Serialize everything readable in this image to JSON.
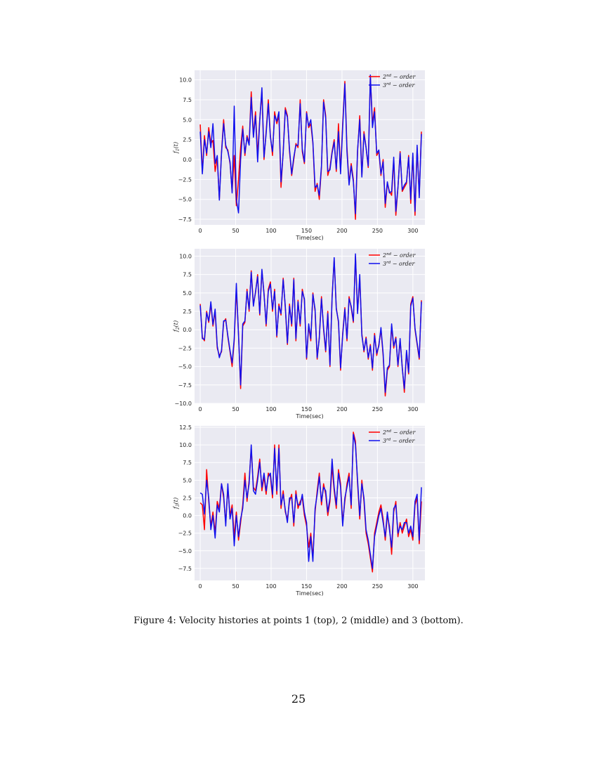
{
  "chart_data": [
    {
      "type": "line",
      "xlabel": "Time(sec)",
      "ylabel": "f_1(t)",
      "ylabel_base": "f",
      "ylabel_sub": "1",
      "ylabel_arg": "(t)",
      "xlim": [
        -8,
        317
      ],
      "ylim": [
        -8.2,
        11.2
      ],
      "xticks": [
        0,
        50,
        100,
        150,
        200,
        250,
        300
      ],
      "xtick_labels": [
        "0",
        "50",
        "100",
        "150",
        "200",
        "250",
        "300"
      ],
      "yticks": [
        -7.5,
        -5.0,
        -2.5,
        0.0,
        2.5,
        5.0,
        7.5,
        10.0
      ],
      "ytick_labels": [
        "−7.5",
        "−5.0",
        "−2.5",
        "0.0",
        "2.5",
        "5.0",
        "7.5",
        "10.0"
      ],
      "grid": true,
      "legend_position": "top-right",
      "x": [
        0,
        3,
        6,
        9,
        12,
        15,
        18,
        21,
        24,
        27,
        30,
        33,
        36,
        39,
        42,
        45,
        48,
        51,
        54,
        57,
        60,
        63,
        66,
        69,
        72,
        75,
        78,
        81,
        84,
        87,
        90,
        93,
        96,
        99,
        102,
        105,
        108,
        111,
        114,
        117,
        120,
        123,
        126,
        129,
        132,
        135,
        138,
        141,
        144,
        147,
        150,
        153,
        156,
        159,
        162,
        165,
        168,
        171,
        174,
        177,
        180,
        183,
        186,
        189,
        192,
        195,
        198,
        201,
        204,
        207,
        210,
        213,
        216,
        219,
        222,
        225,
        228,
        231,
        234,
        237,
        240,
        243,
        246,
        249,
        252,
        255,
        258,
        261,
        264,
        267,
        270,
        273,
        276,
        279,
        282,
        285,
        288,
        291,
        294,
        297,
        300,
        303,
        306,
        309,
        312
      ],
      "series": [
        {
          "name": "2nd − order",
          "name_base": "2",
          "name_sup": "nd",
          "name_rest": " − order",
          "color": "#ff0000",
          "values": [
            4.4,
            -1.5,
            3.0,
            0.5,
            4.0,
            2.0,
            2.4,
            -1.5,
            0.2,
            -5.0,
            1.0,
            5.0,
            1.5,
            1.2,
            -0.5,
            -4.0,
            0.5,
            -5.8,
            -2.5,
            1.5,
            4.2,
            0.5,
            3.0,
            2.0,
            8.5,
            3.0,
            6.0,
            0.5,
            5.0,
            8.5,
            0.0,
            3.5,
            7.5,
            3.0,
            0.5,
            6.0,
            4.5,
            5.5,
            -3.5,
            1.0,
            6.5,
            5.5,
            1.0,
            -2.0,
            0.0,
            2.0,
            1.5,
            7.5,
            1.0,
            -0.5,
            6.0,
            4.0,
            4.5,
            2.0,
            -4.0,
            -3.0,
            -5.0,
            -1.0,
            7.5,
            5.5,
            -2.0,
            -1.0,
            1.0,
            2.5,
            -1.5,
            4.5,
            -1.5,
            4.5,
            9.8,
            1.5,
            -3.0,
            -0.5,
            -2.5,
            -7.5,
            1.0,
            5.5,
            -2.0,
            3.5,
            1.5,
            -1.0,
            10.5,
            4.5,
            6.5,
            0.5,
            1.0,
            -2.0,
            0.0,
            -6.0,
            -3.0,
            -4.0,
            -4.5,
            0.0,
            -7.0,
            -3.5,
            1.0,
            -4.0,
            -3.5,
            -3.0,
            0.5,
            -5.5,
            0.5,
            -7.0,
            1.5,
            -4.5,
            3.5
          ]
        },
        {
          "name": "3rd − order",
          "name_base": "3",
          "name_sup": "rd",
          "name_rest": " − order",
          "color": "#1010ee",
          "values": [
            3.5,
            -1.8,
            2.5,
            0.8,
            3.5,
            1.5,
            4.5,
            -0.5,
            0.5,
            -5.1,
            0.8,
            4.5,
            1.8,
            1.0,
            -0.3,
            -4.2,
            6.7,
            -5.0,
            -6.7,
            0.0,
            3.8,
            0.8,
            2.8,
            1.8,
            7.8,
            2.8,
            5.5,
            -0.3,
            4.8,
            9.0,
            0.3,
            3.2,
            7.0,
            2.8,
            1.0,
            5.5,
            4.8,
            6.0,
            -2.8,
            0.8,
            6.2,
            5.3,
            1.3,
            -1.8,
            0.3,
            1.8,
            1.8,
            7.0,
            1.3,
            -0.3,
            5.8,
            4.2,
            5.0,
            2.2,
            -3.5,
            -3.2,
            -4.5,
            -0.8,
            7.2,
            5.2,
            -1.5,
            -1.3,
            0.8,
            2.2,
            -1.2,
            3.5,
            -1.8,
            4.0,
            9.5,
            1.0,
            -3.2,
            -0.8,
            -2.8,
            -6.8,
            1.2,
            5.0,
            -2.2,
            3.2,
            1.5,
            -0.8,
            10.6,
            4.0,
            6.0,
            0.8,
            1.2,
            -1.8,
            -0.3,
            -5.5,
            -2.8,
            -4.2,
            -4.0,
            0.3,
            -6.5,
            -3.5,
            0.8,
            -3.8,
            -3.2,
            -2.8,
            0.3,
            -5.0,
            0.8,
            -6.5,
            1.8,
            -4.8,
            3.2
          ]
        }
      ]
    },
    {
      "type": "line",
      "xlabel": "Time(sec)",
      "ylabel": "f_2(t)",
      "ylabel_base": "f",
      "ylabel_sub": "2",
      "ylabel_arg": "(t)",
      "xlim": [
        -8,
        317
      ],
      "ylim": [
        -10.0,
        11.0
      ],
      "xticks": [
        0,
        50,
        100,
        150,
        200,
        250,
        300
      ],
      "xtick_labels": [
        "0",
        "50",
        "100",
        "150",
        "200",
        "250",
        "300"
      ],
      "yticks": [
        -10.0,
        -7.5,
        -5.0,
        -2.5,
        0.0,
        2.5,
        5.0,
        7.5,
        10.0
      ],
      "ytick_labels": [
        "−10.0",
        "−7.5",
        "−5.0",
        "−2.5",
        "0.0",
        "2.5",
        "5.0",
        "7.5",
        "10.0"
      ],
      "grid": true,
      "legend_position": "top-right",
      "x": [
        0,
        3,
        6,
        9,
        12,
        15,
        18,
        21,
        24,
        27,
        30,
        33,
        36,
        39,
        42,
        45,
        48,
        51,
        54,
        57,
        60,
        63,
        66,
        69,
        72,
        75,
        78,
        81,
        84,
        87,
        90,
        93,
        96,
        99,
        102,
        105,
        108,
        111,
        114,
        117,
        120,
        123,
        126,
        129,
        132,
        135,
        138,
        141,
        144,
        147,
        150,
        153,
        156,
        159,
        162,
        165,
        168,
        171,
        174,
        177,
        180,
        183,
        186,
        189,
        192,
        195,
        198,
        201,
        204,
        207,
        210,
        213,
        216,
        219,
        222,
        225,
        228,
        231,
        234,
        237,
        240,
        243,
        246,
        249,
        252,
        255,
        258,
        261,
        264,
        267,
        270,
        273,
        276,
        279,
        282,
        285,
        288,
        291,
        294,
        297,
        300,
        303,
        306,
        309,
        312
      ],
      "series": [
        {
          "name": "2nd − order",
          "name_base": "2",
          "name_sup": "nd",
          "name_rest": " − order",
          "color": "#ff0000",
          "values": [
            3.5,
            -1.0,
            -1.5,
            2.5,
            1.0,
            3.5,
            0.5,
            2.5,
            -2.5,
            -3.5,
            -3.0,
            1.0,
            1.5,
            -1.0,
            -3.0,
            -5.0,
            -1.5,
            5.5,
            -0.5,
            -8.0,
            0.5,
            1.0,
            5.5,
            2.5,
            8.0,
            3.5,
            5.0,
            7.5,
            2.0,
            8.0,
            5.0,
            0.5,
            5.5,
            6.5,
            2.5,
            5.5,
            -1.0,
            3.5,
            2.0,
            7.0,
            3.0,
            -2.0,
            3.5,
            0.5,
            7.0,
            -1.5,
            4.0,
            0.5,
            5.5,
            4.0,
            -4.0,
            0.5,
            -1.5,
            5.0,
            2.5,
            -4.0,
            -1.0,
            4.5,
            0.0,
            -3.0,
            2.5,
            -5.0,
            4.5,
            9.5,
            3.0,
            1.0,
            -5.5,
            -0.5,
            3.0,
            -1.5,
            4.5,
            3.0,
            1.0,
            10.0,
            2.5,
            7.0,
            -0.5,
            -3.0,
            -1.0,
            -4.0,
            -2.0,
            -5.5,
            -0.5,
            -3.5,
            -2.0,
            0.0,
            -3.5,
            -9.0,
            -5.5,
            -5.0,
            0.5,
            -2.5,
            -1.0,
            -5.0,
            -1.5,
            -5.0,
            -8.5,
            -3.0,
            -6.0,
            3.5,
            4.5,
            0.0,
            -2.0,
            -4.0,
            4.0
          ]
        },
        {
          "name": "3rd − order",
          "name_base": "3",
          "name_sup": "rd",
          "name_rest": " − order",
          "color": "#1010ee",
          "values": [
            3.3,
            -1.2,
            -1.3,
            2.3,
            1.2,
            3.8,
            0.7,
            2.8,
            -2.2,
            -3.8,
            -2.8,
            1.2,
            1.3,
            -0.8,
            -2.8,
            -4.5,
            -1.2,
            6.3,
            -0.8,
            -7.5,
            0.8,
            1.2,
            5.2,
            2.8,
            7.8,
            3.2,
            5.2,
            7.2,
            2.2,
            8.2,
            4.8,
            0.8,
            5.2,
            6.2,
            2.8,
            5.2,
            -0.8,
            3.2,
            2.2,
            6.8,
            3.2,
            -1.8,
            3.2,
            0.8,
            6.8,
            -1.2,
            3.8,
            0.8,
            5.2,
            4.2,
            -3.8,
            0.8,
            -1.2,
            4.8,
            2.8,
            -3.8,
            -1.2,
            4.2,
            0.3,
            -2.8,
            2.2,
            -4.8,
            4.2,
            9.8,
            2.8,
            1.2,
            -5.2,
            -0.8,
            2.8,
            -1.2,
            4.2,
            3.2,
            1.2,
            10.3,
            2.2,
            7.5,
            -0.8,
            -2.8,
            -1.2,
            -3.8,
            -2.2,
            -5.2,
            -0.8,
            -3.2,
            -2.2,
            0.3,
            -3.2,
            -8.5,
            -5.2,
            -4.8,
            0.8,
            -2.2,
            -1.2,
            -4.8,
            -1.2,
            -5.2,
            -8.0,
            -2.8,
            -5.8,
            3.2,
            4.3,
            0.2,
            -1.8,
            -3.8,
            3.8
          ]
        }
      ]
    },
    {
      "type": "line",
      "xlabel": "Time(sec)",
      "ylabel": "f_3(t)",
      "ylabel_base": "f",
      "ylabel_sub": "3",
      "ylabel_arg": "(t)",
      "xlim": [
        -8,
        317
      ],
      "ylim": [
        -9.2,
        12.7
      ],
      "xticks": [
        0,
        50,
        100,
        150,
        200,
        250,
        300
      ],
      "xtick_labels": [
        "0",
        "50",
        "100",
        "150",
        "200",
        "250",
        "300"
      ],
      "yticks": [
        -7.5,
        -5.0,
        -2.5,
        0.0,
        2.5,
        5.0,
        7.5,
        10.0,
        12.5
      ],
      "ytick_labels": [
        "−7.5",
        "−5.0",
        "−2.5",
        "0.0",
        "2.5",
        "5.0",
        "7.5",
        "10.0",
        "12.5"
      ],
      "grid": true,
      "legend_position": "top-right",
      "x": [
        0,
        3,
        6,
        9,
        12,
        15,
        18,
        21,
        24,
        27,
        30,
        33,
        36,
        39,
        42,
        45,
        48,
        51,
        54,
        57,
        60,
        63,
        66,
        69,
        72,
        75,
        78,
        81,
        84,
        87,
        90,
        93,
        96,
        99,
        102,
        105,
        108,
        111,
        114,
        117,
        120,
        123,
        126,
        129,
        132,
        135,
        138,
        141,
        144,
        147,
        150,
        153,
        156,
        159,
        162,
        165,
        168,
        171,
        174,
        177,
        180,
        183,
        186,
        189,
        192,
        195,
        198,
        201,
        204,
        207,
        210,
        213,
        216,
        219,
        222,
        225,
        228,
        231,
        234,
        237,
        240,
        243,
        246,
        249,
        252,
        255,
        258,
        261,
        264,
        267,
        270,
        273,
        276,
        279,
        282,
        285,
        288,
        291,
        294,
        297,
        300,
        303,
        306,
        309,
        312
      ],
      "series": [
        {
          "name": "2nd − order",
          "name_base": "2",
          "name_sup": "nd",
          "name_rest": " − order",
          "color": "#ff0000",
          "values": [
            1.8,
            1.5,
            -2.0,
            6.5,
            2.0,
            -1.5,
            0.5,
            -2.5,
            2.0,
            1.0,
            4.5,
            2.5,
            -1.0,
            4.0,
            0.0,
            1.5,
            -3.0,
            0.5,
            -3.5,
            -1.0,
            1.5,
            6.0,
            2.0,
            5.0,
            9.5,
            4.0,
            3.5,
            5.5,
            8.0,
            3.5,
            5.5,
            3.0,
            6.0,
            5.5,
            2.5,
            10.0,
            3.0,
            10.0,
            1.0,
            3.5,
            0.5,
            -0.5,
            2.0,
            3.0,
            -1.5,
            3.5,
            1.0,
            2.0,
            2.5,
            0.0,
            -1.5,
            -4.5,
            -2.5,
            -6.0,
            0.5,
            3.5,
            6.0,
            1.5,
            4.5,
            3.0,
            0.0,
            2.0,
            7.0,
            3.5,
            1.0,
            6.5,
            4.5,
            -1.0,
            2.0,
            4.5,
            6.0,
            1.0,
            11.8,
            10.5,
            4.5,
            -0.5,
            5.0,
            2.0,
            -2.5,
            -4.0,
            -6.0,
            -8.0,
            -2.5,
            -1.0,
            0.5,
            1.5,
            -0.5,
            -3.5,
            0.0,
            -1.5,
            -5.5,
            0.5,
            2.0,
            -3.0,
            -1.0,
            -2.5,
            -1.5,
            -0.5,
            -3.0,
            -2.0,
            -3.5,
            1.5,
            2.5,
            -4.0,
            2.0
          ]
        },
        {
          "name": "3rd − order",
          "name_base": "3",
          "name_sup": "rd",
          "name_rest": " − order",
          "color": "#1010ee",
          "values": [
            3.2,
            3.0,
            0.2,
            5.0,
            2.5,
            -2.0,
            0.0,
            -3.2,
            1.5,
            0.5,
            4.5,
            3.0,
            -1.5,
            4.5,
            -0.5,
            1.0,
            -4.3,
            0.0,
            -3.0,
            -0.5,
            1.0,
            5.0,
            2.5,
            4.5,
            10.0,
            3.5,
            3.0,
            5.0,
            7.5,
            4.0,
            6.0,
            3.5,
            5.5,
            6.0,
            3.0,
            9.5,
            3.5,
            9.5,
            1.5,
            3.0,
            0.8,
            -1.0,
            2.5,
            2.5,
            -1.0,
            3.0,
            1.5,
            1.5,
            3.0,
            0.5,
            -1.0,
            -6.5,
            -3.0,
            -6.5,
            1.0,
            3.0,
            5.5,
            2.0,
            4.0,
            3.5,
            0.5,
            2.5,
            8.0,
            4.0,
            1.5,
            6.0,
            4.0,
            -1.5,
            2.5,
            4.0,
            5.5,
            1.5,
            11.5,
            10.0,
            5.0,
            0.0,
            4.5,
            2.5,
            -2.0,
            -3.5,
            -5.5,
            -7.5,
            -3.0,
            -1.5,
            0.0,
            1.0,
            -1.0,
            -3.0,
            0.5,
            -2.0,
            -4.5,
            1.0,
            1.5,
            -2.5,
            -1.5,
            -2.0,
            -1.0,
            -1.0,
            -2.5,
            -1.5,
            -3.0,
            2.0,
            3.0,
            -3.5,
            4.0
          ]
        }
      ]
    }
  ],
  "caption": "Figure 4: Velocity histories at points 1 (top), 2 (middle) and 3 (bottom).",
  "page_number": "25"
}
